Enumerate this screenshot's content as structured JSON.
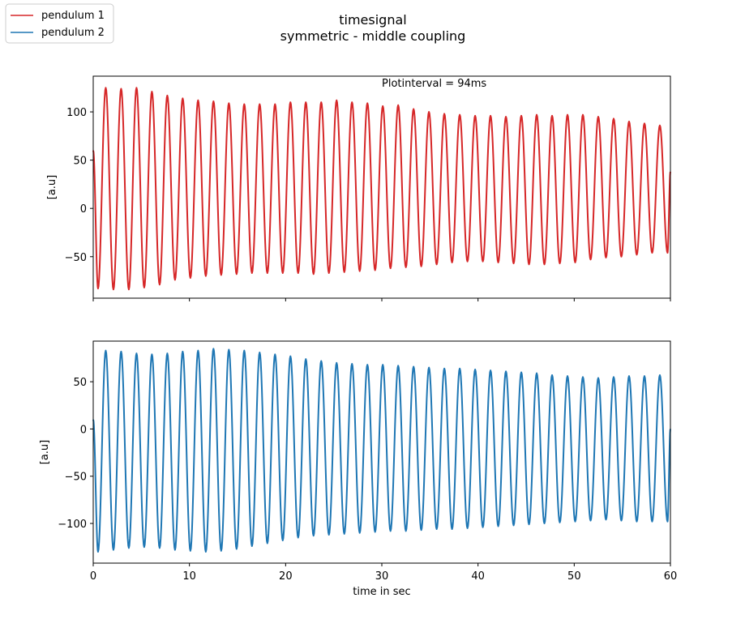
{
  "chart_data": {
    "type": "line",
    "title": "timesignal",
    "subtitle": "symmetric - middle coupling",
    "xlabel": "time in sec",
    "xlim": [
      0,
      60
    ],
    "xticks": [
      0,
      10,
      20,
      30,
      40,
      50,
      60
    ],
    "legend": {
      "placement": "top-left",
      "entries": [
        {
          "name": "pendulum 1",
          "color": "#d62728"
        },
        {
          "name": "pendulum 2",
          "color": "#1f77b4"
        }
      ]
    },
    "annotation": "Plotinterval = 94ms",
    "grid": false,
    "subplots": [
      {
        "name": "pendulum 1",
        "color": "#d62728",
        "ylabel": "[a.u]",
        "ylim": [
          -93,
          137
        ],
        "yticks": [
          -50,
          0,
          50,
          100
        ],
        "period_s": 1.6,
        "start_value": 60,
        "peaks_t": [
          1.3,
          2.9,
          4.5,
          6.1,
          7.7,
          9.3,
          10.9,
          12.5,
          14.1,
          15.7,
          17.3,
          18.9,
          20.5,
          22.1,
          23.7,
          25.3,
          26.9,
          28.5,
          30.1,
          31.7,
          33.3,
          34.9,
          36.5,
          38.1,
          39.7,
          41.3,
          42.9,
          44.5,
          46.1,
          47.7,
          49.3,
          50.9,
          52.5,
          54.1,
          55.7,
          57.3,
          58.9
        ],
        "max_values": [
          125,
          124,
          125,
          121,
          117,
          114,
          112,
          111,
          109,
          108,
          108,
          108,
          110,
          110,
          110,
          112,
          110,
          109,
          106,
          107,
          103,
          100,
          98,
          97,
          96,
          96,
          95,
          96,
          97,
          96,
          97,
          97,
          95,
          93,
          90,
          88,
          86
        ],
        "min_values": [
          -83,
          -84,
          -84,
          -82,
          -79,
          -74,
          -72,
          -70,
          -69,
          -68,
          -67,
          -67,
          -67,
          -67,
          -68,
          -67,
          -66,
          -65,
          -64,
          -62,
          -61,
          -60,
          -58,
          -56,
          -55,
          -55,
          -56,
          -57,
          -58,
          -58,
          -57,
          -56,
          -53,
          -51,
          -50,
          -48,
          -46
        ],
        "end_value": 38
      },
      {
        "name": "pendulum 2",
        "color": "#1f77b4",
        "ylabel": "[a.u]",
        "ylim": [
          -142,
          93
        ],
        "yticks": [
          -100,
          -50,
          0,
          50
        ],
        "period_s": 1.6,
        "start_value": 10,
        "peaks_t": [
          1.3,
          2.9,
          4.5,
          6.1,
          7.7,
          9.3,
          10.9,
          12.5,
          14.1,
          15.7,
          17.3,
          18.9,
          20.5,
          22.1,
          23.7,
          25.3,
          26.9,
          28.5,
          30.1,
          31.7,
          33.3,
          34.9,
          36.5,
          38.1,
          39.7,
          41.3,
          42.9,
          44.5,
          46.1,
          47.7,
          49.3,
          50.9,
          52.5,
          54.1,
          55.7,
          57.3,
          58.9
        ],
        "max_values": [
          83,
          82,
          80,
          79,
          80,
          82,
          83,
          85,
          84,
          83,
          81,
          79,
          77,
          74,
          72,
          70,
          69,
          68,
          68,
          67,
          66,
          65,
          64,
          64,
          63,
          62,
          61,
          60,
          59,
          57,
          56,
          55,
          54,
          55,
          56,
          56,
          57
        ],
        "min_values": [
          -130,
          -128,
          -126,
          -125,
          -126,
          -128,
          -129,
          -130,
          -129,
          -127,
          -124,
          -121,
          -118,
          -115,
          -113,
          -112,
          -111,
          -110,
          -109,
          -108,
          -108,
          -107,
          -106,
          -106,
          -105,
          -104,
          -103,
          -102,
          -101,
          -100,
          -99,
          -98,
          -97,
          -96,
          -97,
          -98,
          -98
        ],
        "end_value": 0
      }
    ]
  }
}
